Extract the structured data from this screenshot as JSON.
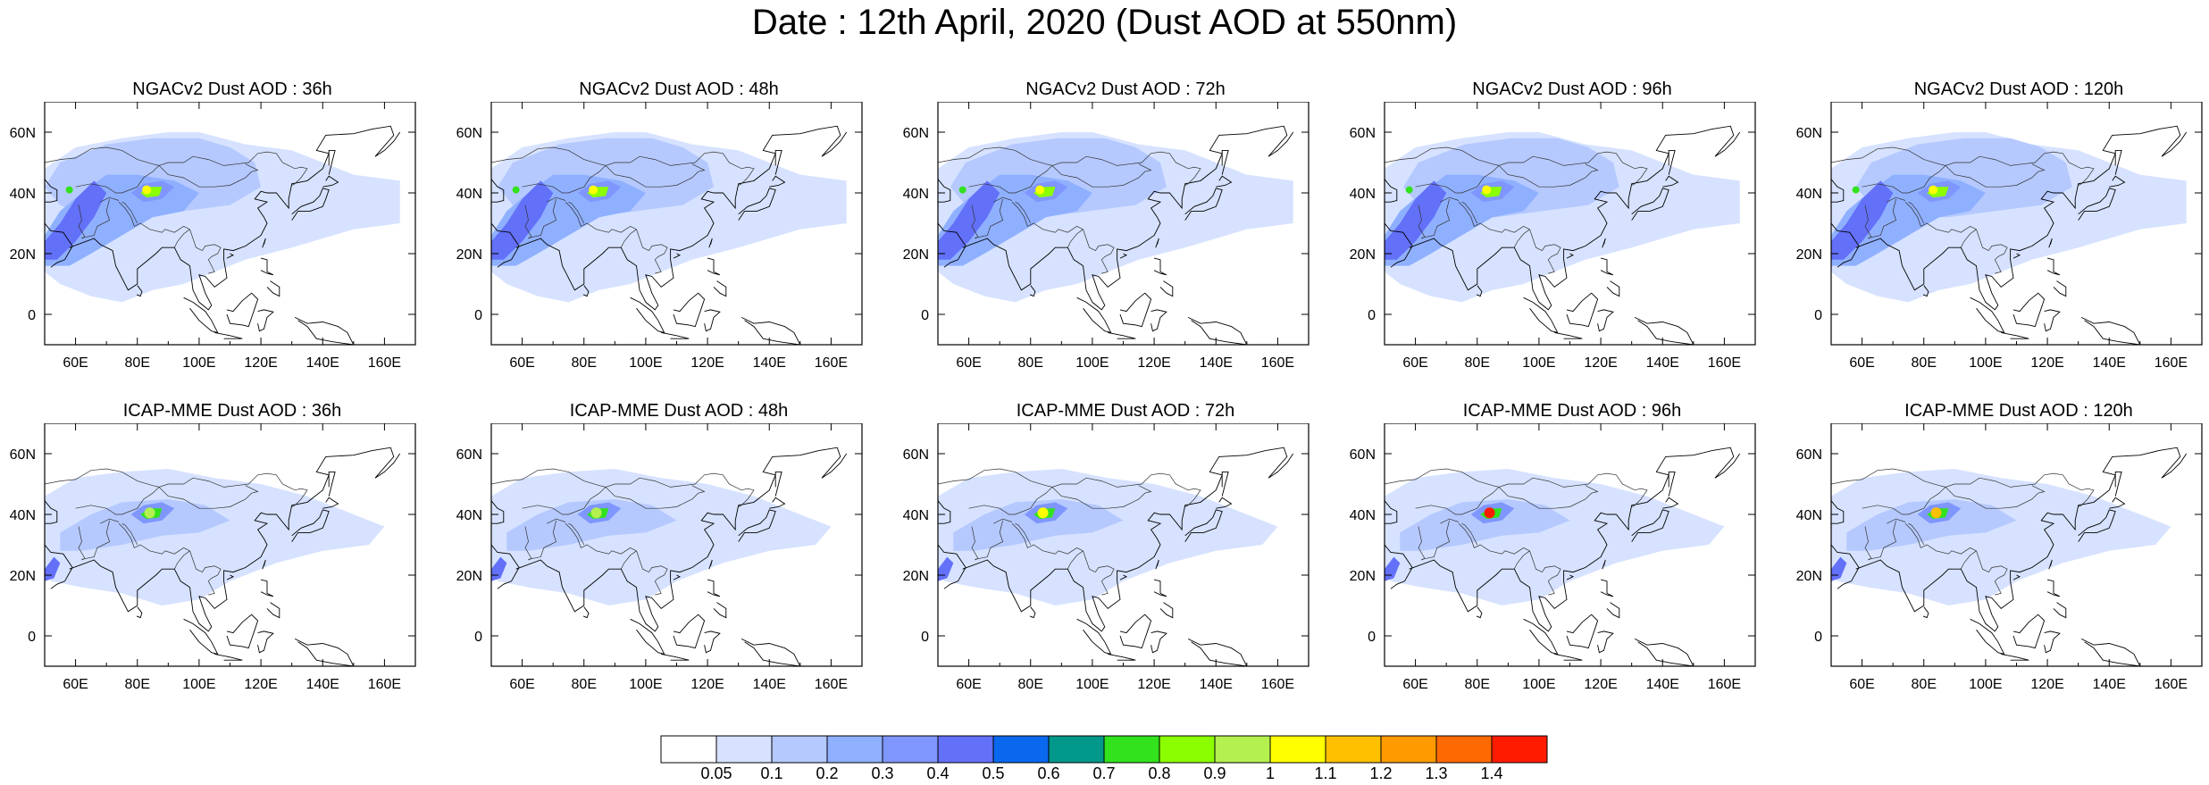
{
  "title": "Date : 12th April, 2020 (Dust AOD at 550nm)",
  "axes": {
    "lon_ticks": [
      "60E",
      "80E",
      "100E",
      "120E",
      "140E",
      "160E"
    ],
    "lat_ticks": [
      "60N",
      "40N",
      "20N",
      "0"
    ],
    "lon_range": [
      50,
      170
    ],
    "lat_range": [
      -10,
      70
    ]
  },
  "panels": [
    {
      "title": "NGACv2 Dust AOD : 36h",
      "model": "NGACv2",
      "lead": "36h"
    },
    {
      "title": "NGACv2 Dust AOD : 48h",
      "model": "NGACv2",
      "lead": "48h"
    },
    {
      "title": "NGACv2 Dust AOD : 72h",
      "model": "NGACv2",
      "lead": "72h"
    },
    {
      "title": "NGACv2 Dust AOD : 96h",
      "model": "NGACv2",
      "lead": "96h"
    },
    {
      "title": "NGACv2 Dust AOD : 120h",
      "model": "NGACv2",
      "lead": "120h"
    },
    {
      "title": "ICAP-MME Dust AOD : 36h",
      "model": "ICAP-MME",
      "lead": "36h"
    },
    {
      "title": "ICAP-MME Dust AOD : 48h",
      "model": "ICAP-MME",
      "lead": "48h"
    },
    {
      "title": "ICAP-MME Dust AOD : 72h",
      "model": "ICAP-MME",
      "lead": "72h"
    },
    {
      "title": "ICAP-MME Dust AOD : 96h",
      "model": "ICAP-MME",
      "lead": "96h"
    },
    {
      "title": "ICAP-MME Dust AOD : 120h",
      "model": "ICAP-MME",
      "lead": "120h"
    }
  ],
  "colorbar": {
    "labels": [
      "0.05",
      "0.1",
      "0.2",
      "0.3",
      "0.4",
      "0.5",
      "0.6",
      "0.7",
      "0.8",
      "0.9",
      "1",
      "1.1",
      "1.2",
      "1.3",
      "1.4"
    ],
    "colors": [
      "#ffffff",
      "#d6e2ff",
      "#b5c9ff",
      "#8fb0ff",
      "#7f96ff",
      "#6370f8",
      "#0a68ef",
      "#00988a",
      "#31e21c",
      "#8bff00",
      "#b4f050",
      "#ffff00",
      "#ffc000",
      "#ff9a00",
      "#ff6a00",
      "#ff1b00"
    ]
  }
}
